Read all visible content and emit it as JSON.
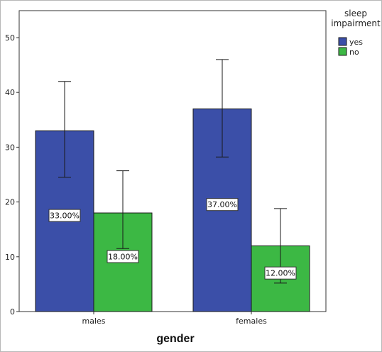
{
  "chart_data": {
    "type": "bar",
    "title": "",
    "xlabel": "gender",
    "ylabel": "",
    "ylim": [
      0,
      50
    ],
    "yticks": [
      0,
      10,
      20,
      30,
      40,
      50
    ],
    "categories": [
      "males",
      "females"
    ],
    "legend": {
      "title_lines": [
        "sleep",
        "impairment"
      ],
      "placement": "right"
    },
    "series": [
      {
        "name": "yes",
        "color": "#3b4fa8",
        "values": [
          33,
          37
        ],
        "error_low": [
          24.5,
          28.2
        ],
        "error_high": [
          42,
          46
        ],
        "labels": [
          "33.00%",
          "37.00%"
        ]
      },
      {
        "name": "no",
        "color": "#3cb844",
        "values": [
          18,
          12
        ],
        "error_low": [
          11.5,
          5.2
        ],
        "error_high": [
          25.7,
          18.8
        ],
        "labels": [
          "18.00%",
          "12.00%"
        ]
      }
    ],
    "grid": false
  }
}
